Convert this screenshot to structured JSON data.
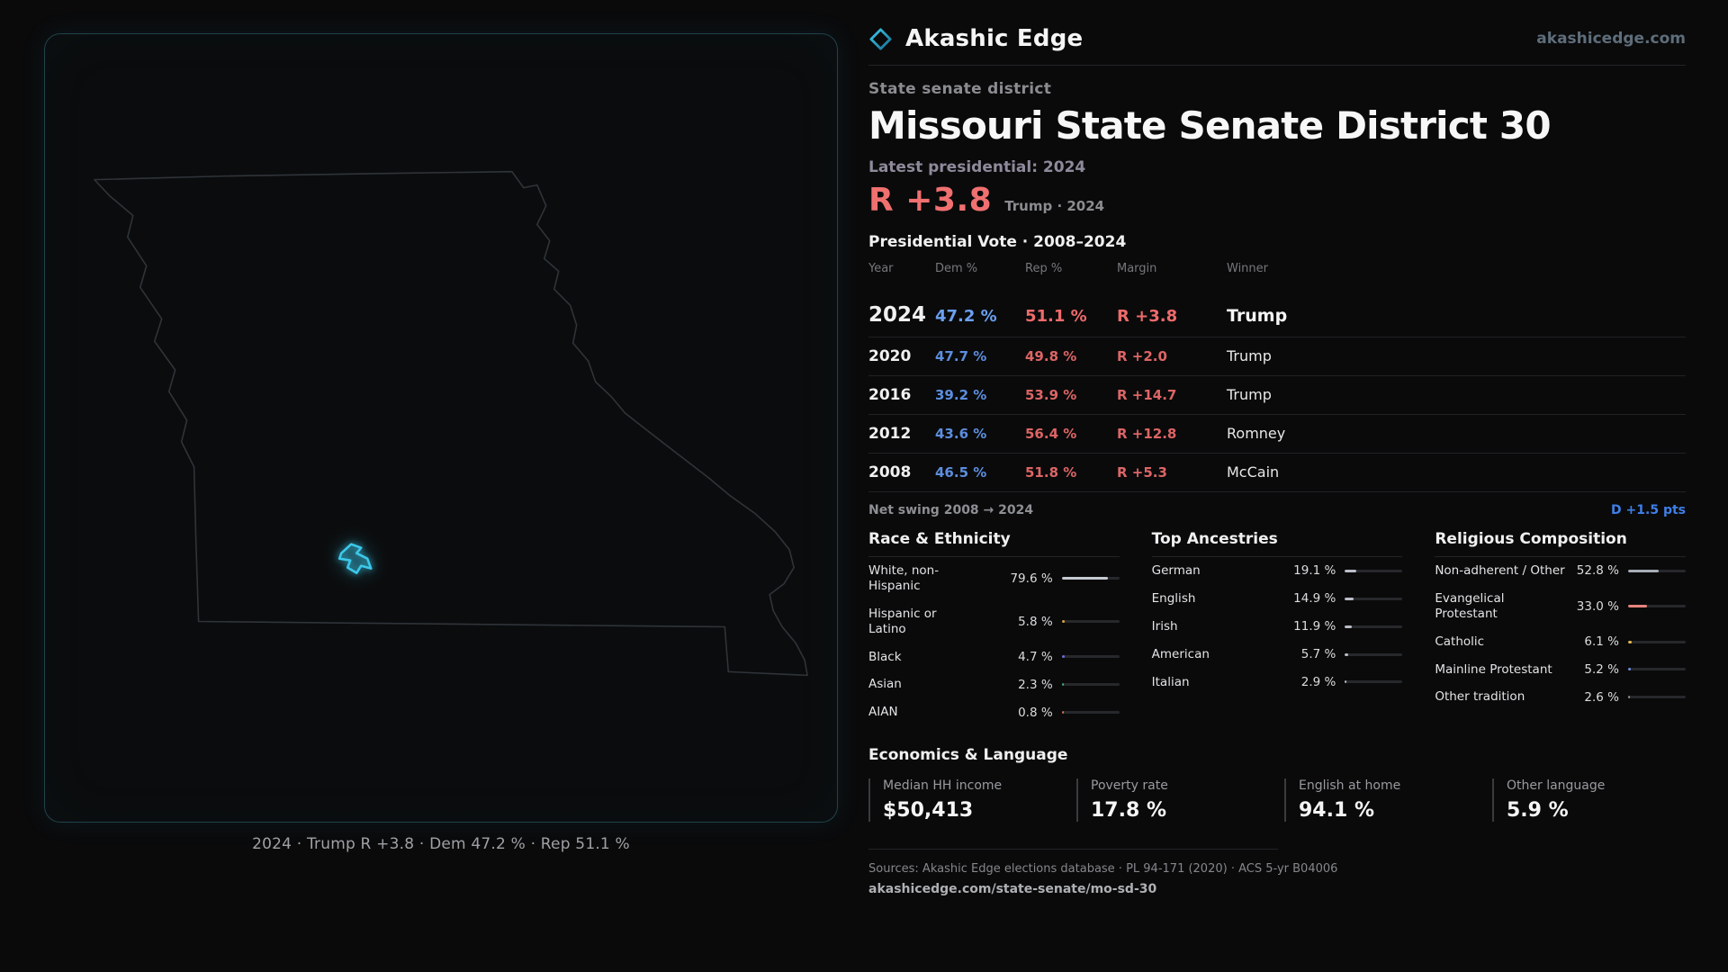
{
  "brand": {
    "name": "Akashic Edge",
    "site": "akashicedge.com"
  },
  "map_panel": {
    "caption": "2024 · Trump R +3.8 · Dem 47.2 % · Rep 51.1 %"
  },
  "profile": {
    "kicker": "State senate district",
    "title": "Missouri State Senate District 30",
    "latest_label": "Latest presidential: 2024",
    "headline_margin": "R +3.8",
    "headline_note": "Trump · 2024"
  },
  "vote_table": {
    "title": "Presidential Vote · 2008–2024",
    "columns": {
      "year": "Year",
      "dem": "Dem %",
      "rep": "Rep %",
      "margin": "Margin",
      "winner": "Winner"
    },
    "rows": [
      {
        "year": "2024",
        "dem": "47.2 %",
        "rep": "51.1 %",
        "margin": "R +3.8",
        "winner": "Trump",
        "cls": "latest"
      },
      {
        "year": "2020",
        "dem": "47.7 %",
        "rep": "49.8 %",
        "margin": "R +2.0",
        "winner": "Trump",
        "cls": ""
      },
      {
        "year": "2016",
        "dem": "39.2 %",
        "rep": "53.9 %",
        "margin": "R +14.7",
        "winner": "Trump",
        "cls": ""
      },
      {
        "year": "2012",
        "dem": "43.6 %",
        "rep": "56.4 %",
        "margin": "R +12.8",
        "winner": "Romney",
        "cls": ""
      },
      {
        "year": "2008",
        "dem": "46.5 %",
        "rep": "51.8 %",
        "margin": "R +5.3",
        "winner": "McCain",
        "cls": ""
      }
    ],
    "net_swing_label": "Net swing 2008 → 2024",
    "net_swing_value": "D +1.5 pts"
  },
  "demographics": {
    "race": {
      "title": "Race & Ethnicity",
      "rows": [
        {
          "label": "White, non-Hispanic",
          "value": "79.6 %",
          "pct": 79.6,
          "color": "#c6cad2"
        },
        {
          "label": "Hispanic or Latino",
          "value": "5.8 %",
          "pct": 5.8,
          "color": "#e0a43c"
        },
        {
          "label": "Black",
          "value": "4.7 %",
          "pct": 4.7,
          "color": "#6d6de2"
        },
        {
          "label": "Asian",
          "value": "2.3 %",
          "pct": 2.3,
          "color": "#3fae7c"
        },
        {
          "label": "AIAN",
          "value": "0.8 %",
          "pct": 0.8,
          "color": "#d9704c"
        }
      ]
    },
    "ancestries": {
      "title": "Top Ancestries",
      "rows": [
        {
          "label": "German",
          "value": "19.1 %",
          "pct": 19.1,
          "color": "#b9bec7"
        },
        {
          "label": "English",
          "value": "14.9 %",
          "pct": 14.9,
          "color": "#b9bec7"
        },
        {
          "label": "Irish",
          "value": "11.9 %",
          "pct": 11.9,
          "color": "#b9bec7"
        },
        {
          "label": "American",
          "value": "5.7 %",
          "pct": 5.7,
          "color": "#b9bec7"
        },
        {
          "label": "Italian",
          "value": "2.9 %",
          "pct": 2.9,
          "color": "#b9bec7"
        }
      ]
    },
    "religion": {
      "title": "Religious Composition",
      "rows": [
        {
          "label": "Non-adherent / Other",
          "value": "52.8 %",
          "pct": 52.8,
          "color": "#a7adb6"
        },
        {
          "label": "Evangelical Protestant",
          "value": "33.0 %",
          "pct": 33.0,
          "color": "#e8837d"
        },
        {
          "label": "Catholic",
          "value": "6.1 %",
          "pct": 6.1,
          "color": "#e3b84e"
        },
        {
          "label": "Mainline Protestant",
          "value": "5.2 %",
          "pct": 5.2,
          "color": "#6c8fe8"
        },
        {
          "label": "Other tradition",
          "value": "2.6 %",
          "pct": 2.6,
          "color": "#8f959c"
        }
      ]
    }
  },
  "economics": {
    "title": "Economics & Language",
    "stats": [
      {
        "label": "Median HH income",
        "value": "$50,413"
      },
      {
        "label": "Poverty rate",
        "value": "17.8 %"
      },
      {
        "label": "English at home",
        "value": "94.1 %"
      },
      {
        "label": "Other language",
        "value": "5.9 %"
      }
    ]
  },
  "footer": {
    "sources": "Sources: Akashic Edge elections database · PL 94-171 (2020) · ACS 5-yr B04006",
    "permalink": "akashicedge.com/state-senate/mo-sd-30"
  }
}
